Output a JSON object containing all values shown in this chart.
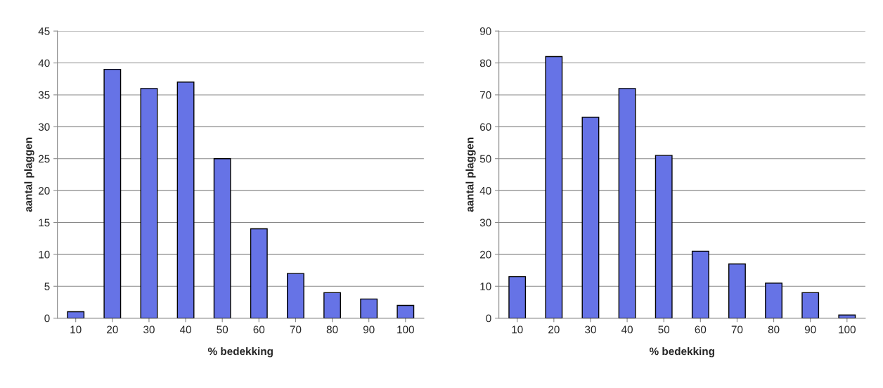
{
  "chart_data": [
    {
      "type": "bar",
      "xlabel": "% bedekking",
      "ylabel": "aantal plaggen",
      "categories": [
        "10",
        "20",
        "30",
        "40",
        "50",
        "60",
        "70",
        "80",
        "90",
        "100"
      ],
      "values": [
        1,
        39,
        36,
        37,
        25,
        14,
        7,
        4,
        3,
        2
      ],
      "color": "#6673e6",
      "ylim": [
        0,
        45
      ],
      "yticks": [
        0,
        5,
        10,
        15,
        20,
        25,
        30,
        35,
        40,
        45
      ],
      "grid": "y",
      "legend": false
    },
    {
      "type": "bar",
      "xlabel": "% bedekking",
      "ylabel": "aantal plaggen",
      "categories": [
        "10",
        "20",
        "30",
        "40",
        "50",
        "60",
        "70",
        "80",
        "90",
        "100"
      ],
      "values": [
        13,
        82,
        63,
        72,
        51,
        21,
        17,
        11,
        8,
        1
      ],
      "color": "#6673e6",
      "ylim": [
        0,
        90
      ],
      "yticks": [
        0,
        10,
        20,
        30,
        40,
        50,
        60,
        70,
        80,
        90
      ],
      "grid": "y",
      "legend": false
    }
  ]
}
